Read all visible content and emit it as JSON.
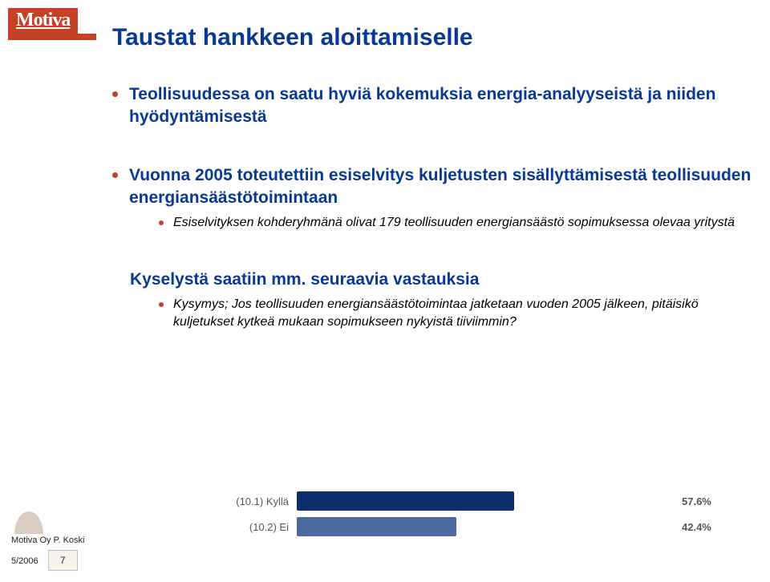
{
  "logo_text": "Motiva",
  "title": "Taustat hankkeen aloittamiselle",
  "bullet1": "Teollisuudessa on saatu hyviä kokemuksia energia-analyyseistä ja niiden hyödyntämisestä",
  "bullet2": "Vuonna 2005 toteutettiin esiselvitys kuljetusten sisällyttämisestä teollisuuden energiansäästötoimintaan",
  "bullet2_sub": "Esiselvityksen kohderyhmänä olivat 179 teollisuuden energiansäästö sopimuksessa olevaa yritystä",
  "sub_heading": "Kyselystä saatiin mm. seuraavia vastauksia",
  "sub_bullet": "Kysymys; Jos teollisuuden energiansäästötoimintaa jatketaan vuoden 2005 jälkeen, pitäisikö kuljetukset kytkeä mukaan sopimukseen nykyistä tiiviimmin?",
  "chart": {
    "type": "bar-horizontal",
    "background": "#ffffff",
    "label_color": "#525665",
    "label_fontsize": 13,
    "pct_fontweight": "bold",
    "rows": [
      {
        "label": "(10.1) Kyllä",
        "pct": "57.6%",
        "width_pct": 57.6,
        "color": "#0b2d6b"
      },
      {
        "label": "(10.2) Ei",
        "pct": "42.4%",
        "width_pct": 42.4,
        "color": "#4a6aa0"
      }
    ]
  },
  "footer_author": "Motiva Oy P. Koski",
  "footer_date": "5/2006",
  "page_number": "7",
  "colors": {
    "brand_red": "#c54125",
    "title_blue": "#083a94",
    "tab_bg": "#d9ccc0"
  }
}
